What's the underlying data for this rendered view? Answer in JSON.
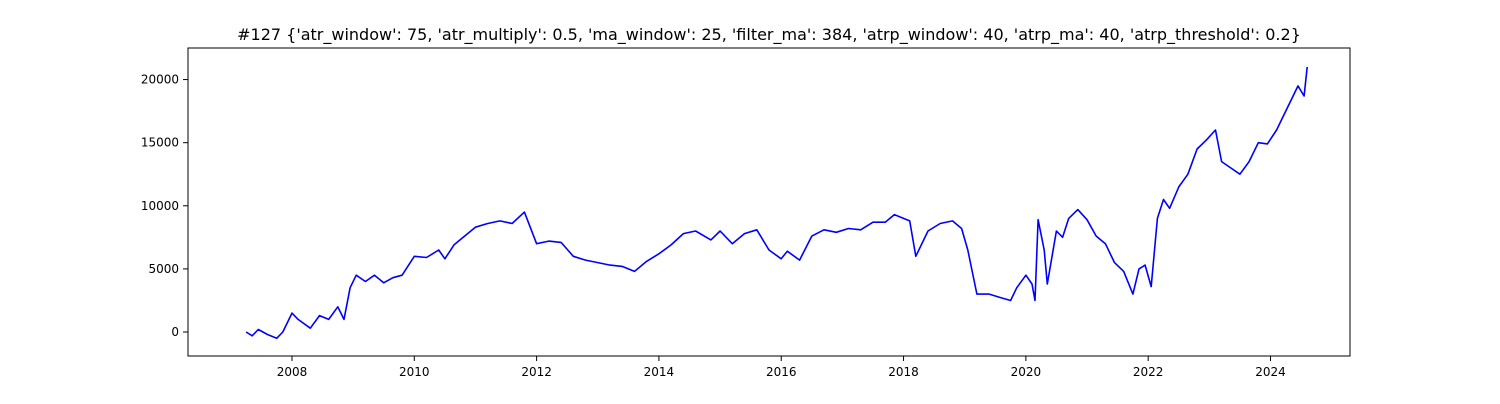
{
  "chart_data": {
    "type": "line",
    "title": "#127 {'atr_window': 75, 'atr_multiply': 0.5, 'ma_window': 25, 'filter_ma': 384, 'atrp_window': 40, 'atrp_ma': 40, 'atrp_threshold': 0.2}",
    "xlabel": "",
    "ylabel": "",
    "xlim": [
      2006.3,
      2025.3
    ],
    "ylim": [
      -1900,
      22500
    ],
    "x_ticks": [
      2008,
      2010,
      2012,
      2014,
      2016,
      2018,
      2020,
      2022,
      2024
    ],
    "y_ticks": [
      0,
      5000,
      10000,
      15000,
      20000
    ],
    "grid": false,
    "legend": "none",
    "series": [
      {
        "color": "#0000ff",
        "x": [
          2007.25,
          2007.35,
          2007.45,
          2007.6,
          2007.75,
          2007.85,
          2008.0,
          2008.1,
          2008.3,
          2008.45,
          2008.6,
          2008.75,
          2008.85,
          2008.95,
          2009.05,
          2009.2,
          2009.35,
          2009.5,
          2009.65,
          2009.8,
          2010.0,
          2010.2,
          2010.4,
          2010.5,
          2010.65,
          2010.8,
          2011.0,
          2011.2,
          2011.4,
          2011.6,
          2011.8,
          2012.0,
          2012.2,
          2012.4,
          2012.6,
          2012.8,
          2013.0,
          2013.2,
          2013.4,
          2013.6,
          2013.8,
          2014.0,
          2014.2,
          2014.4,
          2014.6,
          2014.85,
          2015.0,
          2015.2,
          2015.4,
          2015.6,
          2015.8,
          2016.0,
          2016.1,
          2016.3,
          2016.5,
          2016.7,
          2016.9,
          2017.1,
          2017.3,
          2017.5,
          2017.7,
          2017.85,
          2018.0,
          2018.1,
          2018.2,
          2018.4,
          2018.6,
          2018.8,
          2018.95,
          2019.05,
          2019.2,
          2019.4,
          2019.6,
          2019.75,
          2019.85,
          2020.0,
          2020.1,
          2020.15,
          2020.2,
          2020.3,
          2020.35,
          2020.5,
          2020.6,
          2020.7,
          2020.85,
          2021.0,
          2021.15,
          2021.3,
          2021.45,
          2021.6,
          2021.75,
          2021.85,
          2021.95,
          2022.05,
          2022.15,
          2022.25,
          2022.35,
          2022.5,
          2022.65,
          2022.8,
          2022.95,
          2023.1,
          2023.2,
          2023.35,
          2023.5,
          2023.65,
          2023.8,
          2023.95,
          2024.1,
          2024.2,
          2024.35,
          2024.45,
          2024.55,
          2024.6
        ],
        "y": [
          0,
          -300,
          200,
          -200,
          -500,
          0,
          1500,
          1000,
          300,
          1300,
          1000,
          2000,
          1000,
          3500,
          4500,
          4000,
          4500,
          3900,
          4300,
          4500,
          6000,
          5900,
          6500,
          5800,
          6900,
          7500,
          8300,
          8600,
          8800,
          8600,
          9500,
          7000,
          7200,
          7100,
          6000,
          5700,
          5500,
          5300,
          5200,
          4800,
          5600,
          6200,
          6900,
          7800,
          8000,
          7300,
          8000,
          7000,
          7800,
          8100,
          6500,
          5800,
          6400,
          5700,
          7600,
          8100,
          7900,
          8200,
          8100,
          8700,
          8700,
          9300,
          9000,
          8800,
          6000,
          8000,
          8600,
          8800,
          8200,
          6500,
          3000,
          3000,
          2700,
          2500,
          3500,
          4500,
          3800,
          2500,
          8900,
          6500,
          3800,
          8000,
          7500,
          9000,
          9700,
          8900,
          7600,
          7000,
          5500,
          4800,
          3000,
          5000,
          5300,
          3600,
          9000,
          10500,
          9800,
          11500,
          12500,
          14500,
          15200,
          16000,
          13500,
          13000,
          12500,
          13500,
          15000,
          14900,
          16000,
          17000,
          18500,
          19500,
          18700,
          21000
        ]
      }
    ]
  }
}
